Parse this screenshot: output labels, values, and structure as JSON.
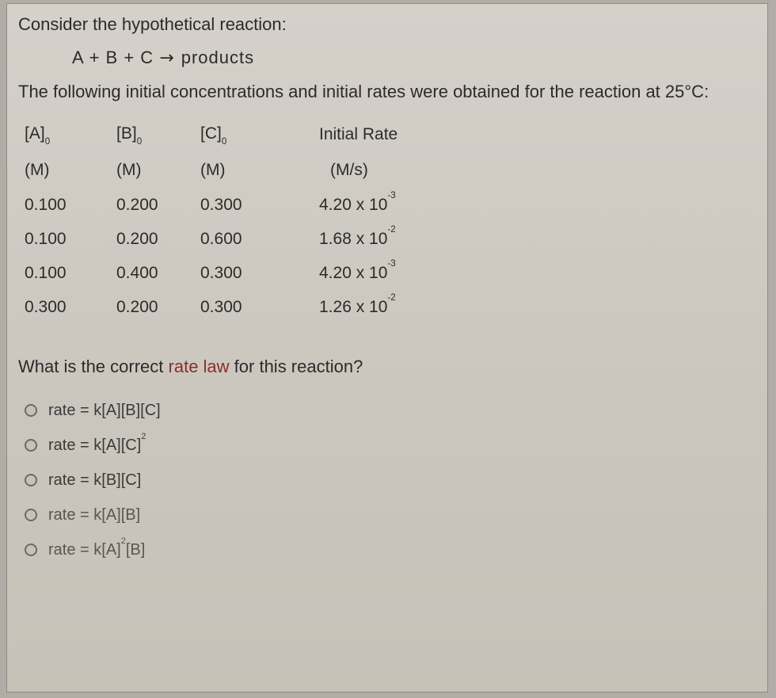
{
  "intro": "Consider the hypothetical reaction:",
  "equation_lhs": "A + B + C",
  "equation_rhs": "products",
  "context": "The following initial concentrations and initial rates were obtained for the reaction at 25°C:",
  "table": {
    "headers": {
      "a": "[A]",
      "a_sub": "0",
      "b": "[B]",
      "b_sub": "0",
      "c": "[C]",
      "c_sub": "0",
      "rate": "Initial Rate"
    },
    "units": {
      "a": "(M)",
      "b": "(M)",
      "c": "(M)",
      "rate": "(M/s)"
    },
    "rows": [
      {
        "a": "0.100",
        "b": "0.200",
        "c": "0.300",
        "rate_m": "4.20",
        "rate_e": "-3"
      },
      {
        "a": "0.100",
        "b": "0.200",
        "c": "0.600",
        "rate_m": "1.68",
        "rate_e": "-2"
      },
      {
        "a": "0.100",
        "b": "0.400",
        "c": "0.300",
        "rate_m": "4.20",
        "rate_e": "-3"
      },
      {
        "a": "0.300",
        "b": "0.200",
        "c": "0.300",
        "rate_m": "1.26",
        "rate_e": "-2"
      }
    ]
  },
  "question_pre": "What is the correct ",
  "question_highlight": "rate law",
  "question_post": " for this reaction?",
  "options": [
    {
      "pre": "rate = k[A][B][C]",
      "sup": ""
    },
    {
      "pre": "rate = k[A][C]",
      "sup": "2"
    },
    {
      "pre": "rate = k[B][C]",
      "sup": ""
    },
    {
      "pre": "rate = k[A][B]",
      "sup": ""
    },
    {
      "pre": "rate = k[A]",
      "sup": "2",
      "post": "[B]"
    }
  ],
  "colors": {
    "page_bg_top": "#d5d1ca",
    "page_bg_bot": "#c6c2b8",
    "text": "#2b2b2b",
    "highlight": "#8a2f28",
    "border": "#8f8b84",
    "radio_border": "#6e6a63"
  },
  "font_sizes": {
    "body": 22,
    "table": 21,
    "options": 20
  }
}
